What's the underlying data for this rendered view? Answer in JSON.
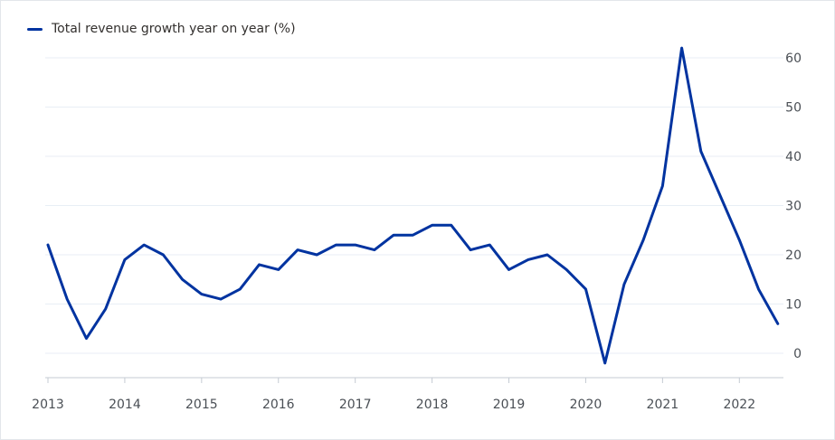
{
  "chart_data": {
    "type": "line",
    "legend_position": "top-left",
    "grid": true,
    "y_axis_side": "right",
    "xlim": [
      2013.0,
      2022.55
    ],
    "ylim": [
      -5,
      65
    ],
    "yticks": [
      0,
      10,
      20,
      30,
      40,
      50,
      60
    ],
    "xticks": [
      2013,
      2014,
      2015,
      2016,
      2017,
      2018,
      2019,
      2020,
      2021,
      2022
    ],
    "colors": {
      "series": "#0033a0",
      "grid": "#e8eef5",
      "axis": "#c5cbd3"
    },
    "series": [
      {
        "name": "Total revenue growth year on year (%)",
        "x": [
          2013.0,
          2013.25,
          2013.5,
          2013.75,
          2014.0,
          2014.25,
          2014.5,
          2014.75,
          2015.0,
          2015.25,
          2015.5,
          2015.75,
          2016.0,
          2016.25,
          2016.5,
          2016.75,
          2017.0,
          2017.25,
          2017.5,
          2017.75,
          2018.0,
          2018.25,
          2018.5,
          2018.75,
          2019.0,
          2019.25,
          2019.5,
          2019.75,
          2020.0,
          2020.25,
          2020.5,
          2020.75,
          2021.0,
          2021.25,
          2021.5,
          2021.75,
          2022.0,
          2022.25,
          2022.5
        ],
        "values": [
          22,
          11,
          3,
          9,
          19,
          22,
          20,
          15,
          12,
          11,
          13,
          18,
          17,
          21,
          20,
          22,
          22,
          21,
          24,
          24,
          26,
          26,
          21,
          22,
          17,
          19,
          20,
          17,
          13,
          -2,
          14,
          23,
          34,
          62,
          41,
          32,
          23,
          13,
          6
        ]
      }
    ]
  }
}
